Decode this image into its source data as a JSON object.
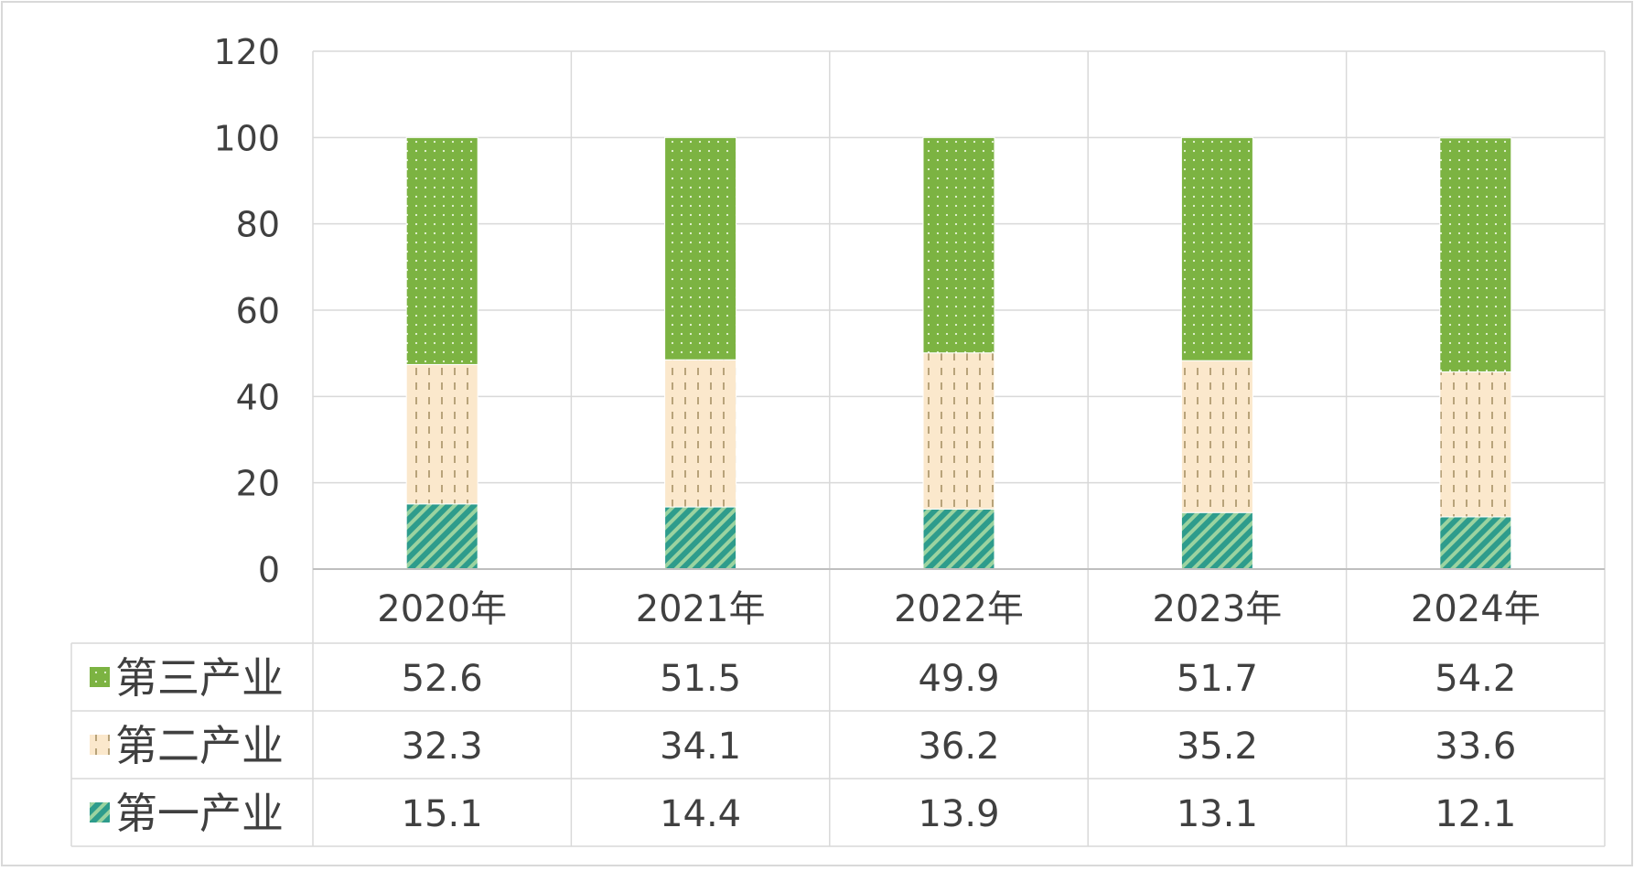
{
  "chart_data": {
    "type": "bar",
    "stacked": true,
    "title": "",
    "xlabel": "",
    "ylabel": "",
    "ylim": [
      0,
      120
    ],
    "yticks": [
      0,
      20,
      40,
      60,
      80,
      100,
      120
    ],
    "grid": true,
    "legend": "data-table-left",
    "categories": [
      "2020年",
      "2021年",
      "2022年",
      "2023年",
      "2024年"
    ],
    "series": [
      {
        "name": "第一产业",
        "values": [
          15.1,
          14.4,
          13.9,
          13.1,
          12.1
        ],
        "color": "#2e9c8c",
        "pattern": "diagonal-hatch"
      },
      {
        "name": "第二产业",
        "values": [
          32.3,
          34.1,
          36.2,
          35.2,
          33.6
        ],
        "color": "#fbe8cc",
        "pattern": "vertical-dashes"
      },
      {
        "name": "第三产业",
        "values": [
          52.6,
          51.5,
          49.9,
          51.7,
          54.2
        ],
        "color": "#7cb342",
        "pattern": "dots"
      }
    ],
    "table_row_order": [
      "第三产业",
      "第二产业",
      "第一产业"
    ]
  }
}
